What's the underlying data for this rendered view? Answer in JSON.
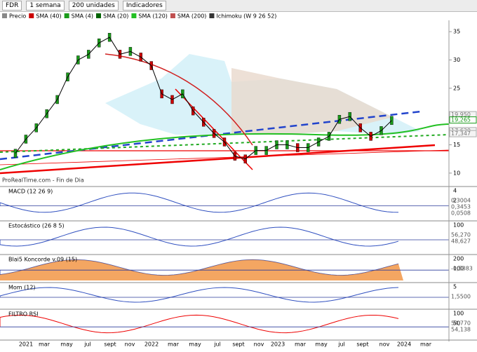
{
  "toolbar": {
    "symbol": "FDR",
    "period": "1 semana",
    "units": "200 unidades",
    "indicators": "Indicadores"
  },
  "legend": [
    "Precio",
    "SMA (40)",
    "SMA (4)",
    "SMA (20)",
    "SMA (120)",
    "SMA (200)",
    "Ichimoku (W 9 26 52)"
  ],
  "watermark": "ProRealTime.com - Fin de Dia",
  "price": {
    "yticks": [
      35,
      30,
      25,
      15,
      10
    ],
    "ylim": [
      8,
      37
    ],
    "values": [
      13.5,
      16,
      18,
      20.5,
      23,
      27,
      30,
      31,
      33,
      34,
      31,
      31.5,
      30.5,
      29,
      24,
      23,
      24,
      21,
      19,
      17,
      15.5,
      13,
      12.5,
      14,
      14,
      15,
      15,
      14.5,
      14.5,
      15.5,
      16.5,
      19.5,
      20,
      18,
      16.5,
      17.5,
      19.3
    ],
    "labels": [
      {
        "value": 19.95,
        "label": "19,950"
      },
      {
        "value": 19.265,
        "label": "19,265"
      },
      {
        "value": 17.62,
        "label": "17,620"
      },
      {
        "value": 17.347,
        "label": "17,347"
      }
    ]
  },
  "panels": [
    {
      "title": "MACD (12 26 9)",
      "ticks": [
        "4",
        "2"
      ],
      "values": [
        "0,3004",
        "0,3453",
        "0,0508"
      ]
    },
    {
      "title": "Estocástico (26 8 5)",
      "ticks": [
        "100"
      ],
      "values": [
        "56,270",
        "48,627"
      ]
    },
    {
      "title": "Blai5 Koncorde v.09 (15)",
      "ticks": [
        "200",
        "100"
      ],
      "values": [
        "-0,5883"
      ]
    },
    {
      "title": "Mom (12)",
      "ticks": [
        "5"
      ],
      "values": [
        "1,5500"
      ]
    },
    {
      "title": "FILTRO RSI",
      "ticks": [
        "100",
        "50"
      ],
      "values": [
        "54,770",
        "54,138"
      ]
    }
  ],
  "xaxis": [
    "2021",
    "mar",
    "may",
    "jul",
    "sept",
    "nov",
    "2022",
    "mar",
    "may",
    "jul",
    "sept",
    "nov",
    "2023",
    "mar",
    "may",
    "jul",
    "sept",
    "nov",
    "2024",
    "mar"
  ]
}
